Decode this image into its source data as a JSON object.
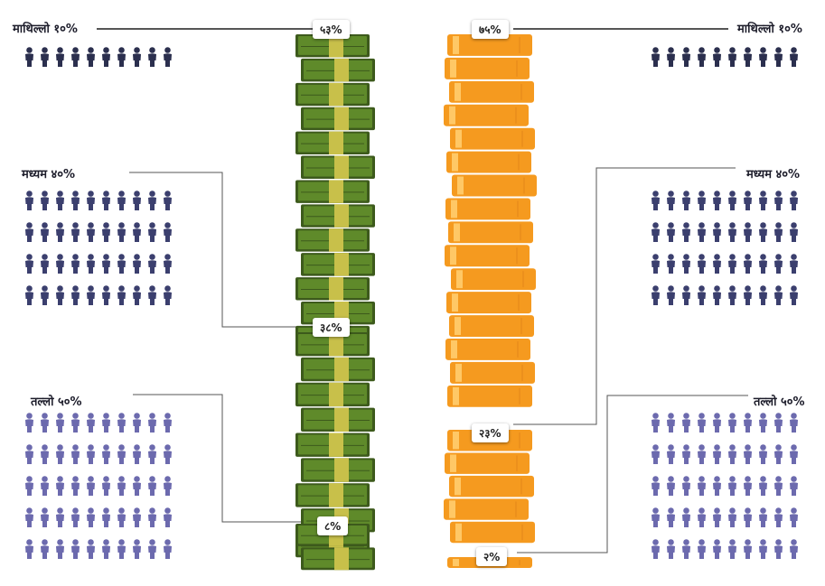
{
  "colors": {
    "top_people": "#2b2f4e",
    "middle_people": "#3b3f6e",
    "bottom_people": "#6c6aae",
    "money_dark": "#3d5a1c",
    "money_mid": "#5f8a2a",
    "money_band": "#c8c04a",
    "bar_orange": "#f59a1f",
    "bar_orange_light": "#ffc866",
    "line": "#555555"
  },
  "groups": {
    "top": {
      "label": "माथिल्लो १०%",
      "people": 10
    },
    "middle": {
      "label": "मध्यम ४०%",
      "people": 40
    },
    "bottom": {
      "label": "तल्लो ५०%",
      "people": 50
    }
  },
  "chart_data": [
    {
      "type": "bar",
      "title": "",
      "categories": [
        "माथिल्लो १०%",
        "मध्यम ४०%",
        "तल्लो ५०%"
      ],
      "values": [
        53,
        38,
        8
      ],
      "value_labels": [
        "५३%",
        "३८%",
        "८%"
      ],
      "icon": "money-stack"
    },
    {
      "type": "bar",
      "title": "",
      "categories": [
        "माथिल्लो १०%",
        "मध्यम ४०%",
        "तल्लो ५०%"
      ],
      "values": [
        75,
        23,
        2
      ],
      "value_labels": [
        "७५%",
        "२३%",
        "२%"
      ],
      "icon": "gold-bar-stack"
    }
  ]
}
